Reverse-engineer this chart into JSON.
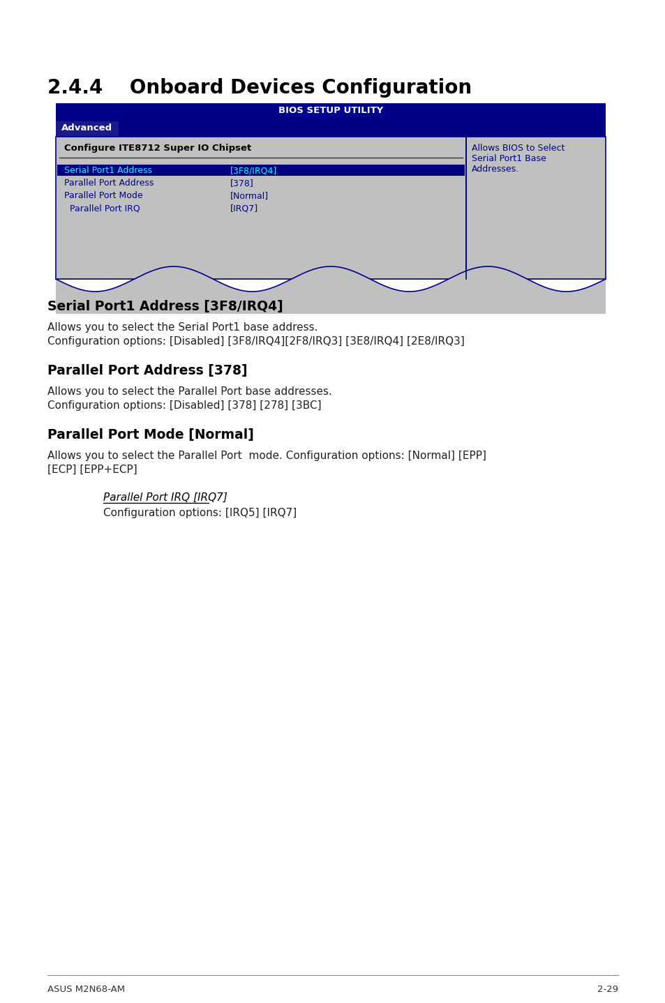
{
  "page_title": "2.4.4    Onboard Devices Configuration",
  "bios_title": "BIOS SETUP UTILITY",
  "bios_tab": "Advanced",
  "bios_subtitle": "Configure ITE8712 Super IO Chipset",
  "bios_rows": [
    {
      "label": "Serial Port1 Address",
      "value": "[3F8/IRQ4]",
      "highlighted": true
    },
    {
      "label": "Parallel Port Address",
      "value": "[378]",
      "highlighted": false
    },
    {
      "label": "Parallel Port Mode",
      "value": "[Normal]",
      "highlighted": false
    },
    {
      "label": "  Parallel Port IRQ",
      "value": "[IRQ7]",
      "highlighted": false
    }
  ],
  "bios_help_text": "Allows BIOS to Select\nSerial Port1 Base\nAddresses.",
  "sections": [
    {
      "heading": "Serial Port1 Address [3F8/IRQ4]",
      "body": "Allows you to select the Serial Port1 base address.\nConfiguration options: [Disabled] [3F8/IRQ4][2F8/IRQ3] [3E8/IRQ4] [2E8/IRQ3]"
    },
    {
      "heading": "Parallel Port Address [378]",
      "body": "Allows you to select the Parallel Port base addresses.\nConfiguration options: [Disabled] [378] [278] [3BC]"
    },
    {
      "heading": "Parallel Port Mode [Normal]",
      "body": "Allows you to select the Parallel Port  mode. Configuration options: [Normal] [EPP]\n[ECP] [EPP+ECP]"
    }
  ],
  "sub_section_heading": "Parallel Port IRQ [IRQ7]",
  "sub_section_body": "Configuration options: [IRQ5] [IRQ7]",
  "footer_left": "ASUS M2N68-AM",
  "footer_right": "2-29",
  "bg_color": "#ffffff",
  "bios_header_bg": "#00008B",
  "bios_header_text": "#ffffff",
  "bios_tab_bg": "#000080",
  "bios_tab_text": "#ffffff",
  "bios_body_bg": "#C0C0C0",
  "bios_text_color": "#00008B",
  "bios_highlight_color": "#0000CD",
  "bios_help_bg": "#C0C0C0",
  "bios_border_color": "#00008B"
}
